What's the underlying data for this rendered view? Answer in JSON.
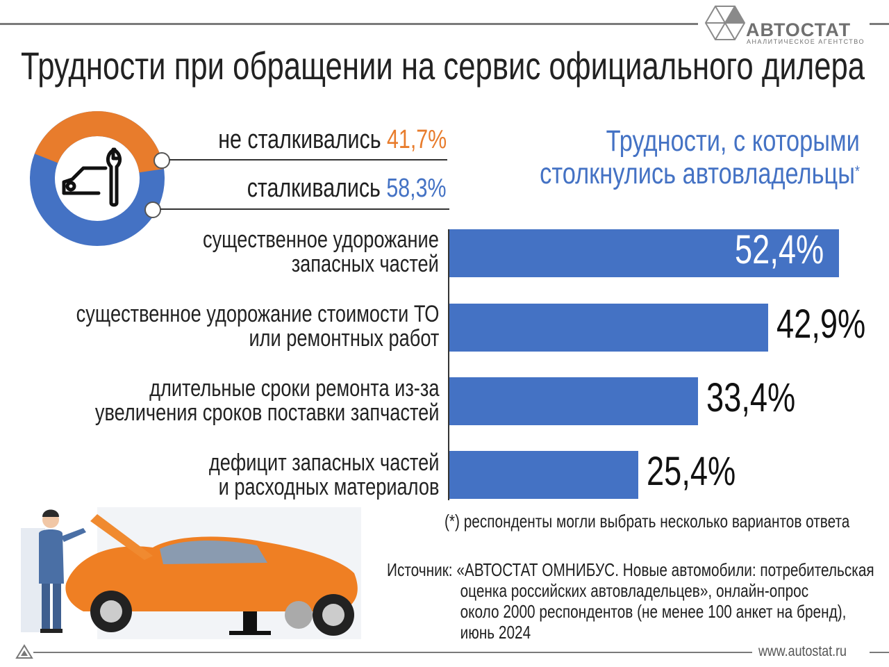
{
  "header": {
    "brand": "АВТОСТАТ",
    "brand_sub": "АНАЛИТИЧЕСКОЕ АГЕНТСТВО",
    "title": "Трудности при обращении на сервис официального дилера"
  },
  "donut": {
    "not_faced": {
      "label": "не сталкивались",
      "value_text": "41,7%",
      "value": 41.7,
      "color": "#e87c2c"
    },
    "faced": {
      "label": "сталкивались",
      "value_text": "58,3%",
      "value": 58.3,
      "color": "#4472c4"
    }
  },
  "right_title": {
    "line1": "Трудности, с которыми",
    "line2": "столкнулись автовладельцы",
    "mark": "*"
  },
  "chart_data": {
    "type": "bar",
    "orientation": "horizontal",
    "title": "Трудности, с которыми столкнулись автовладельцы*",
    "categories": [
      [
        "существенное удорожание",
        "запасных частей"
      ],
      [
        "существенное удорожание стоимости ТО",
        "или ремонтных работ"
      ],
      [
        "длительные сроки ремонта из-за",
        "увеличения сроков поставки запчастей"
      ],
      [
        "дефицит запасных частей",
        "и расходных материалов"
      ]
    ],
    "values": [
      52.4,
      42.9,
      33.4,
      25.4
    ],
    "value_labels": [
      "52,4%",
      "42,9%",
      "33,4%",
      "25,4%"
    ],
    "xlim": [
      0,
      60
    ],
    "bar_color": "#4472c4"
  },
  "note": "(*) респонденты могли выбрать несколько вариантов ответа",
  "source": {
    "line1": "Источник: «АВТОСТАТ ОМНИБУС. Новые автомобили: потребительская",
    "line2": "оценка российских автовладельцев», онлайн-опрос",
    "line3": "около 2000 респондентов (не менее 100 анкет на бренд),",
    "line4": "июнь 2024"
  },
  "footer": {
    "site": "www.autostat.ru"
  }
}
